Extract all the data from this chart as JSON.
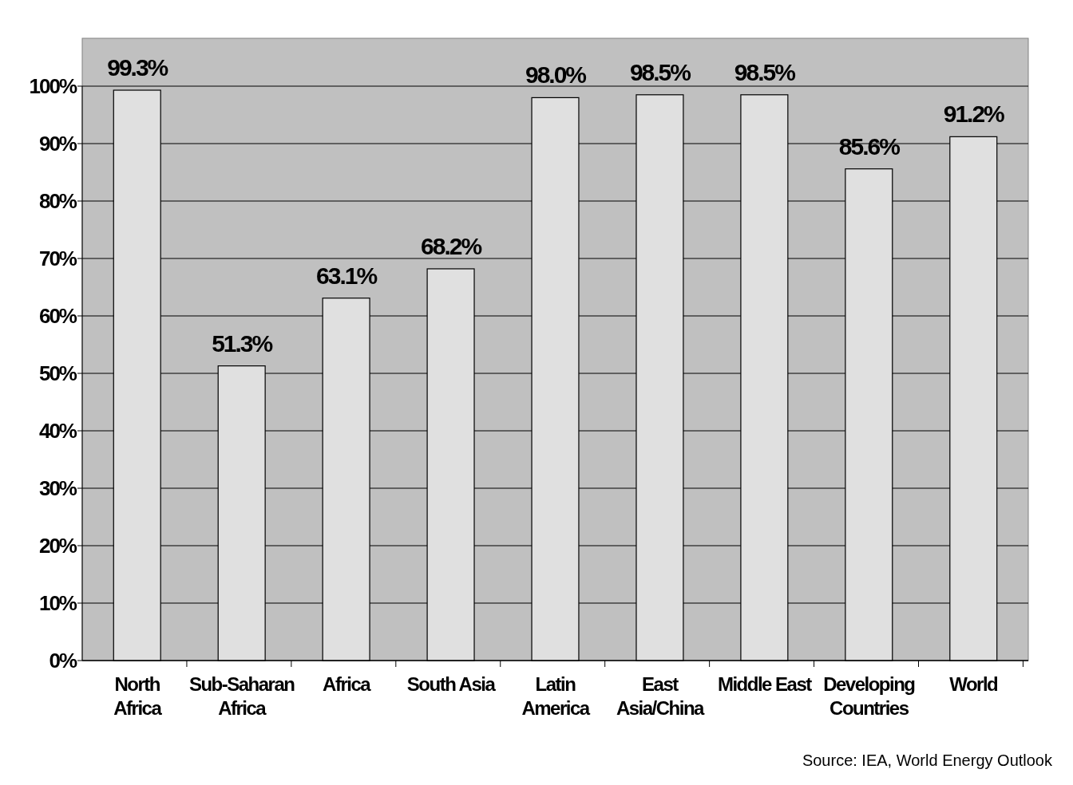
{
  "chart_data": {
    "type": "bar",
    "categories": [
      "North Africa",
      "Sub-Saharan Africa",
      "Africa",
      "South Asia",
      "Latin America",
      "East Asia/China",
      "Middle East",
      "Developing Countries",
      "World"
    ],
    "values": [
      99.3,
      51.3,
      63.1,
      68.2,
      98.0,
      98.5,
      98.5,
      85.6,
      91.2
    ],
    "value_labels": [
      "99.3%",
      "51.3%",
      "63.1%",
      "68.2%",
      "98.0%",
      "98.5%",
      "98.5%",
      "85.6%",
      "91.2%"
    ],
    "color": "#e0e0e0",
    "ylim": [
      0,
      100
    ],
    "yticks": [
      {
        "value": 0,
        "label": "0%"
      },
      {
        "value": 10,
        "label": "10%"
      },
      {
        "value": 20,
        "label": "20%"
      },
      {
        "value": 30,
        "label": "30%"
      },
      {
        "value": 40,
        "label": "40%"
      },
      {
        "value": 50,
        "label": "50%"
      },
      {
        "value": 60,
        "label": "60%"
      },
      {
        "value": 70,
        "label": "70%"
      },
      {
        "value": 80,
        "label": "80%"
      },
      {
        "value": 90,
        "label": "90%"
      },
      {
        "value": 100,
        "label": "100%"
      }
    ],
    "grid": "y",
    "annotations": [
      "Source: IEA, World Energy Outlook"
    ]
  }
}
